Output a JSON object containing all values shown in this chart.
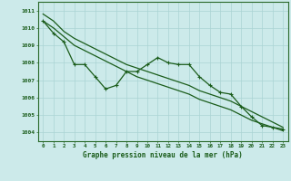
{
  "title": "Graphe pression niveau de la mer (hPa)",
  "background_color": "#cceaea",
  "grid_color": "#aad4d4",
  "line_color": "#1a5c1a",
  "x_labels": [
    "0",
    "1",
    "2",
    "3",
    "4",
    "5",
    "6",
    "7",
    "8",
    "9",
    "10",
    "11",
    "12",
    "13",
    "14",
    "15",
    "16",
    "17",
    "18",
    "19",
    "20",
    "21",
    "22",
    "23"
  ],
  "ylim": [
    1003.5,
    1011.5
  ],
  "yticks": [
    1004,
    1005,
    1006,
    1007,
    1008,
    1009,
    1010,
    1011
  ],
  "main_series": [
    1010.4,
    1009.7,
    1009.2,
    1007.9,
    1007.9,
    1007.2,
    1006.5,
    1006.7,
    1007.5,
    1007.5,
    1007.9,
    1008.3,
    1008.0,
    1007.9,
    1007.9,
    1007.2,
    1006.7,
    1006.3,
    1006.2,
    1005.5,
    1004.9,
    1004.4,
    1004.3,
    1004.2
  ],
  "upper_series": [
    1010.8,
    1010.4,
    1009.8,
    1009.4,
    1009.1,
    1008.8,
    1008.5,
    1008.2,
    1007.9,
    1007.7,
    1007.5,
    1007.3,
    1007.1,
    1006.9,
    1006.7,
    1006.4,
    1006.2,
    1006.0,
    1005.8,
    1005.5,
    1005.2,
    1004.9,
    1004.6,
    1004.3
  ],
  "lower_series": [
    1010.4,
    1010.0,
    1009.5,
    1009.0,
    1008.7,
    1008.4,
    1008.1,
    1007.8,
    1007.5,
    1007.2,
    1007.0,
    1006.8,
    1006.6,
    1006.4,
    1006.2,
    1005.9,
    1005.7,
    1005.5,
    1005.3,
    1005.0,
    1004.7,
    1004.5,
    1004.3,
    1004.1
  ]
}
